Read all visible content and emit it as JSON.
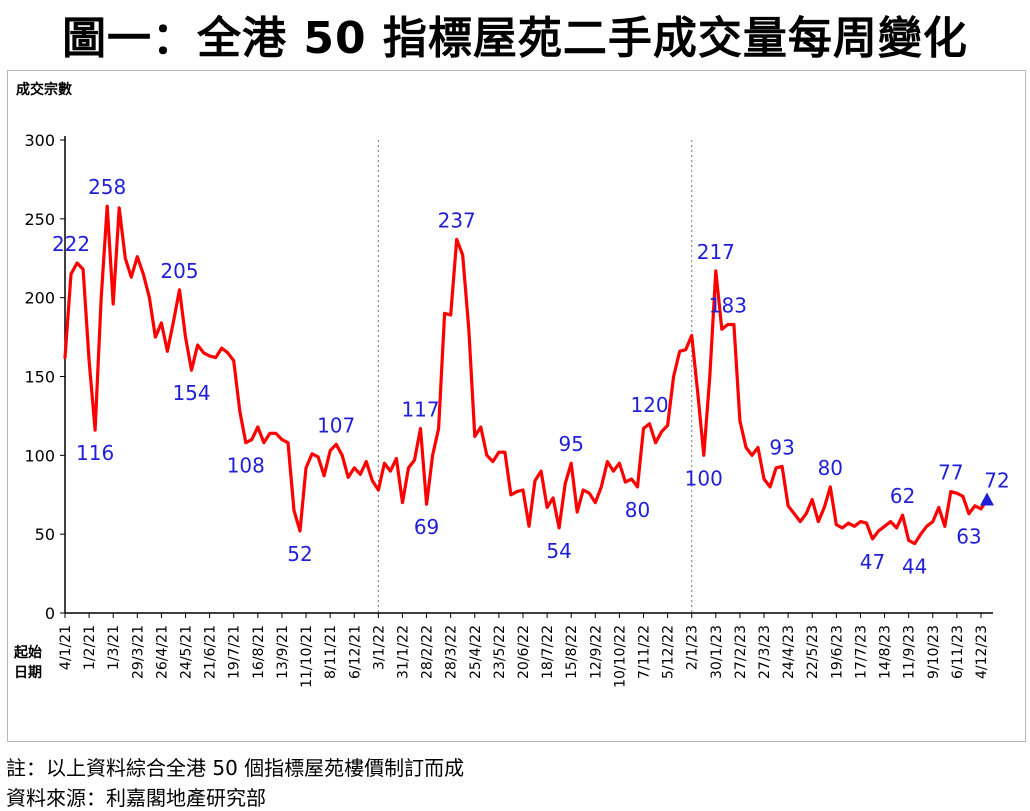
{
  "title": "圖一：全港 50 指標屋苑二手成交量每周變化",
  "footnotes": {
    "note": "註：以上資料綜合全港 50 個指標屋苑樓價制訂而成",
    "source": "資料來源：利嘉閣地產研究部"
  },
  "chart_data": {
    "type": "line",
    "title": "",
    "ylabel": "成交宗數",
    "xlabel": "起始日期",
    "ylim": [
      0,
      300
    ],
    "yticks": [
      0,
      50,
      100,
      150,
      200,
      250,
      300
    ],
    "grid": "off",
    "series_color": "#ff0000",
    "label_color": "#1f1fd8",
    "x_tick_labels": [
      "4/1/21",
      "1/2/21",
      "1/3/21",
      "29/3/21",
      "26/4/21",
      "24/5/21",
      "21/6/21",
      "19/7/21",
      "16/8/21",
      "13/9/21",
      "11/10/21",
      "8/11/21",
      "6/12/21",
      "3/1/22",
      "31/1/22",
      "28/2/22",
      "28/3/22",
      "25/4/22",
      "23/5/22",
      "20/6/22",
      "18/7/22",
      "15/8/22",
      "12/9/22",
      "10/10/22",
      "7/11/22",
      "5/12/22",
      "2/1/23",
      "30/1/23",
      "27/2/23",
      "27/3/23",
      "24/4/23",
      "22/5/23",
      "19/6/23",
      "17/7/23",
      "14/8/23",
      "11/9/23",
      "9/10/23",
      "6/11/23",
      "4/12/23"
    ],
    "year_dividers": [
      "3/1/22",
      "2/1/23"
    ],
    "series": [
      {
        "values": [
          162,
          215,
          222,
          218,
          160,
          116,
          200,
          258,
          196,
          257,
          225,
          213,
          226,
          215,
          200,
          175,
          184,
          166,
          185,
          205,
          175,
          154,
          170,
          165,
          163,
          162,
          168,
          165,
          160,
          128,
          108,
          110,
          118,
          108,
          114,
          114,
          110,
          108,
          65,
          52,
          92,
          101,
          99,
          87,
          103,
          107,
          100,
          86,
          92,
          88,
          96,
          84,
          78,
          95,
          90,
          98,
          70,
          92,
          97,
          117,
          69,
          100,
          117,
          190,
          189,
          237,
          227,
          180,
          112,
          118,
          100,
          96,
          102,
          102,
          75,
          77,
          78,
          55,
          84,
          90,
          67,
          73,
          54,
          82,
          95,
          64,
          78,
          76,
          70,
          80,
          96,
          90,
          95,
          83,
          85,
          80,
          117,
          120,
          108,
          115,
          119,
          150,
          166,
          167,
          176,
          140,
          100,
          150,
          217,
          180,
          183,
          183,
          122,
          105,
          100,
          105,
          85,
          80,
          92,
          93,
          68,
          63,
          58,
          63,
          72,
          58,
          67,
          80,
          56,
          54,
          57,
          55,
          58,
          57,
          47,
          52,
          55,
          58,
          54,
          62,
          46,
          44,
          50,
          55,
          58,
          67,
          55,
          77,
          76,
          74,
          63,
          68,
          66,
          72
        ]
      }
    ],
    "point_labels": [
      {
        "i": 2,
        "text": "222"
      },
      {
        "i": 5,
        "text": "116"
      },
      {
        "i": 7,
        "text": "258"
      },
      {
        "i": 19,
        "text": "205"
      },
      {
        "i": 21,
        "text": "154"
      },
      {
        "i": 30,
        "text": "108"
      },
      {
        "i": 39,
        "text": "52"
      },
      {
        "i": 45,
        "text": "107"
      },
      {
        "i": 59,
        "text": "117"
      },
      {
        "i": 60,
        "text": "69"
      },
      {
        "i": 65,
        "text": "237"
      },
      {
        "i": 82,
        "text": "54"
      },
      {
        "i": 84,
        "text": "95"
      },
      {
        "i": 95,
        "text": "80"
      },
      {
        "i": 97,
        "text": "120"
      },
      {
        "i": 106,
        "text": "100"
      },
      {
        "i": 108,
        "text": "217"
      },
      {
        "i": 110,
        "text": "183"
      },
      {
        "i": 119,
        "text": "93"
      },
      {
        "i": 127,
        "text": "80"
      },
      {
        "i": 134,
        "text": "47"
      },
      {
        "i": 139,
        "text": "62"
      },
      {
        "i": 141,
        "text": "44"
      },
      {
        "i": 147,
        "text": "77"
      },
      {
        "i": 150,
        "text": "63"
      },
      {
        "i": 153,
        "text": "72"
      }
    ]
  }
}
